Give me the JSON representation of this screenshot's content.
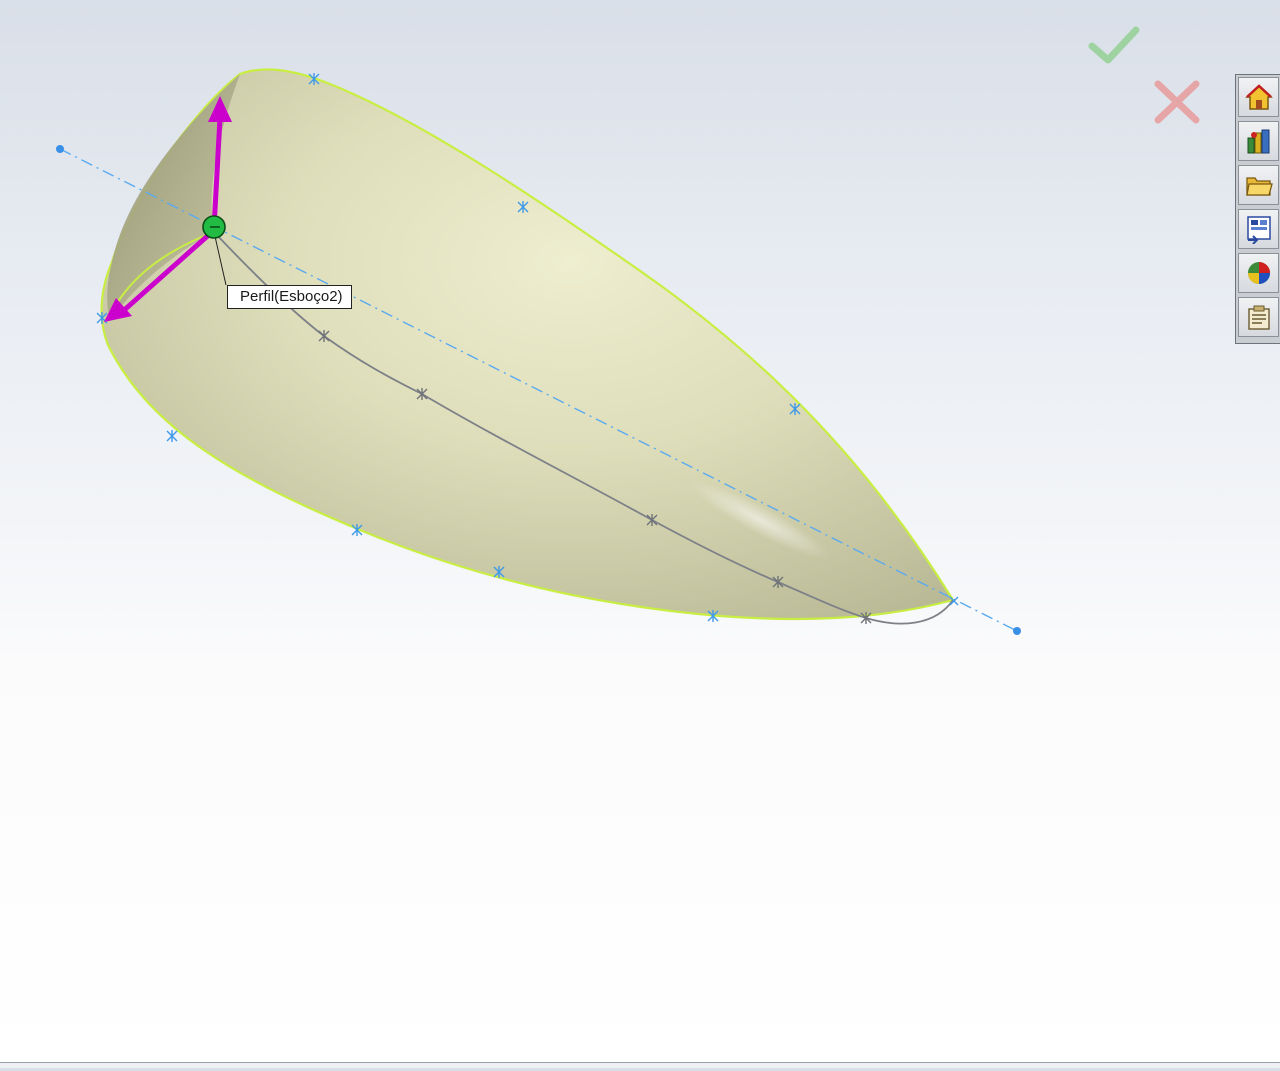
{
  "viewport": {
    "tooltip": "Perfil(Esboço2)",
    "confirm_icon": "green-checkmark-icon",
    "cancel_icon": "red-x-icon"
  },
  "task_pane": {
    "tabs": [
      {
        "icon": "home-icon"
      },
      {
        "icon": "design-library-icon"
      },
      {
        "icon": "file-explorer-folder-icon"
      },
      {
        "icon": "view-palette-icon"
      },
      {
        "icon": "appearances-icon"
      },
      {
        "icon": "custom-properties-icon"
      }
    ]
  },
  "colors": {
    "surface": "#dcdcb0",
    "surface_edge": "#c8ee42",
    "axis": "#4a9cec",
    "handle": "#cc00cc",
    "pivot": "#22bb44",
    "guide": "#777a80"
  }
}
